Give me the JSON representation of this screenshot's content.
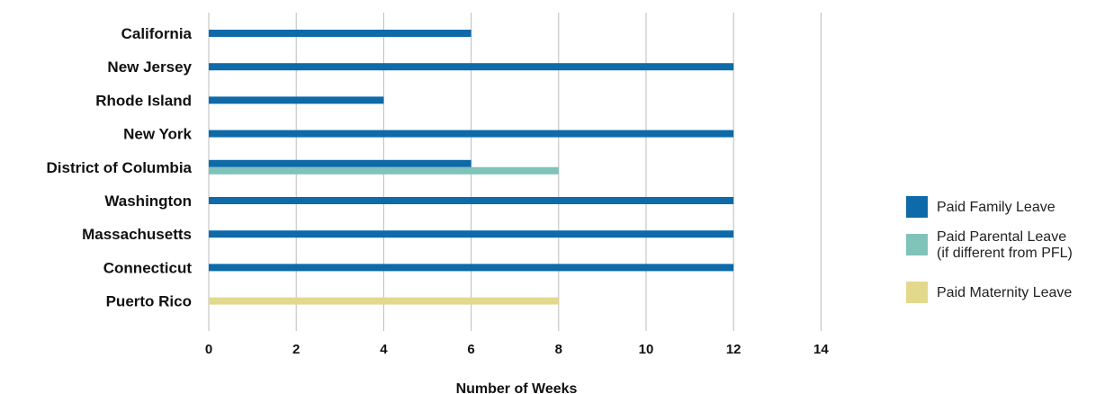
{
  "chart_data": {
    "type": "bar",
    "orientation": "horizontal",
    "categories": [
      "California",
      "New Jersey",
      "Rhode Island",
      "New York",
      "District of Columbia",
      "Washington",
      "Massachusetts",
      "Connecticut",
      "Puerto Rico"
    ],
    "series": [
      {
        "name": "Paid Family Leave",
        "color": "#0e6aa8",
        "values": [
          6,
          12,
          4,
          12,
          6,
          12,
          12,
          12,
          null
        ]
      },
      {
        "name": "Paid Parental Leave (if different from PFL)",
        "legend_lines": [
          "Paid Parental Leave",
          "(if different from PFL)"
        ],
        "color": "#7fc3b9",
        "values": [
          null,
          null,
          null,
          null,
          8,
          null,
          null,
          null,
          null
        ]
      },
      {
        "name": "Paid Maternity Leave",
        "color": "#e3d98c",
        "values": [
          null,
          null,
          null,
          null,
          null,
          null,
          null,
          null,
          8
        ]
      }
    ],
    "xlabel": "Number of Weeks",
    "ylabel": "",
    "xlim": [
      0,
      14
    ],
    "xticks": [
      0,
      2,
      4,
      6,
      8,
      10,
      12,
      14
    ],
    "grid": "vertical",
    "legend_position": "right"
  }
}
